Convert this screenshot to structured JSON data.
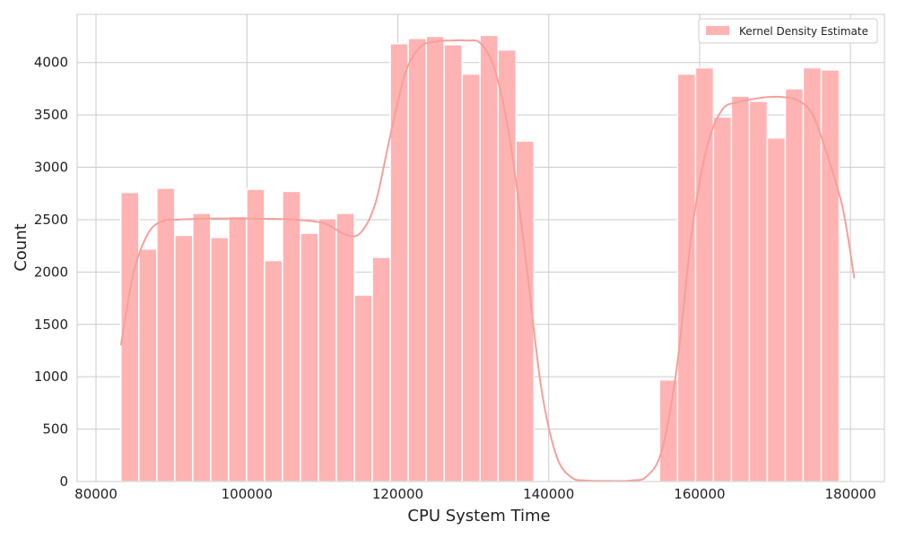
{
  "chart_data": {
    "type": "bar",
    "title": "",
    "xlabel": "CPU System Time",
    "ylabel": "Count",
    "xlim": [
      77500,
      184500
    ],
    "ylim": [
      0,
      4460
    ],
    "x_ticks": [
      80000,
      100000,
      120000,
      140000,
      160000,
      180000
    ],
    "y_ticks": [
      0,
      500,
      1000,
      1500,
      2000,
      2500,
      3000,
      3500,
      4000
    ],
    "grid": true,
    "legend_position": "top-right",
    "legend": [
      "Kernel Density Estimate"
    ],
    "colors": {
      "bar": "#ffb3b3",
      "kde": "#f4a09c",
      "grid": "#cccccc",
      "axis": "#cccccc"
    },
    "bins": {
      "start": 83300,
      "width": 2380,
      "counts": [
        2760,
        2220,
        2800,
        2350,
        2560,
        2330,
        2530,
        2790,
        2110,
        2770,
        2370,
        2510,
        2560,
        1780,
        2140,
        4180,
        4230,
        4250,
        4170,
        3890,
        4260,
        4120,
        3250,
        0,
        0,
        0,
        0,
        0,
        0,
        0,
        970,
        3890,
        3950,
        3480,
        3680,
        3630,
        3280,
        3750,
        3950,
        3930
      ]
    },
    "series": [
      {
        "name": "Kernel Density Estimate",
        "x": [
          83300,
          85000,
          87000,
          89000,
          91000,
          95000,
          100000,
          105000,
          110000,
          113000,
          115000,
          117000,
          119000,
          121000,
          123000,
          125000,
          127000,
          129000,
          131000,
          133000,
          135000,
          137000,
          139000,
          141000,
          143000,
          145000,
          148000,
          151000,
          153000,
          155000,
          157000,
          159000,
          161000,
          163000,
          165000,
          167000,
          169000,
          171000,
          173000,
          175000,
          177000,
          179000,
          180500
        ],
        "y": [
          1300,
          2000,
          2380,
          2490,
          2500,
          2510,
          2510,
          2505,
          2470,
          2360,
          2370,
          2650,
          3300,
          3900,
          4150,
          4200,
          4210,
          4210,
          4180,
          3900,
          3200,
          2100,
          900,
          250,
          40,
          10,
          5,
          10,
          50,
          300,
          1100,
          2400,
          3200,
          3550,
          3620,
          3650,
          3670,
          3670,
          3640,
          3500,
          3100,
          2600,
          1940
        ]
      }
    ]
  }
}
